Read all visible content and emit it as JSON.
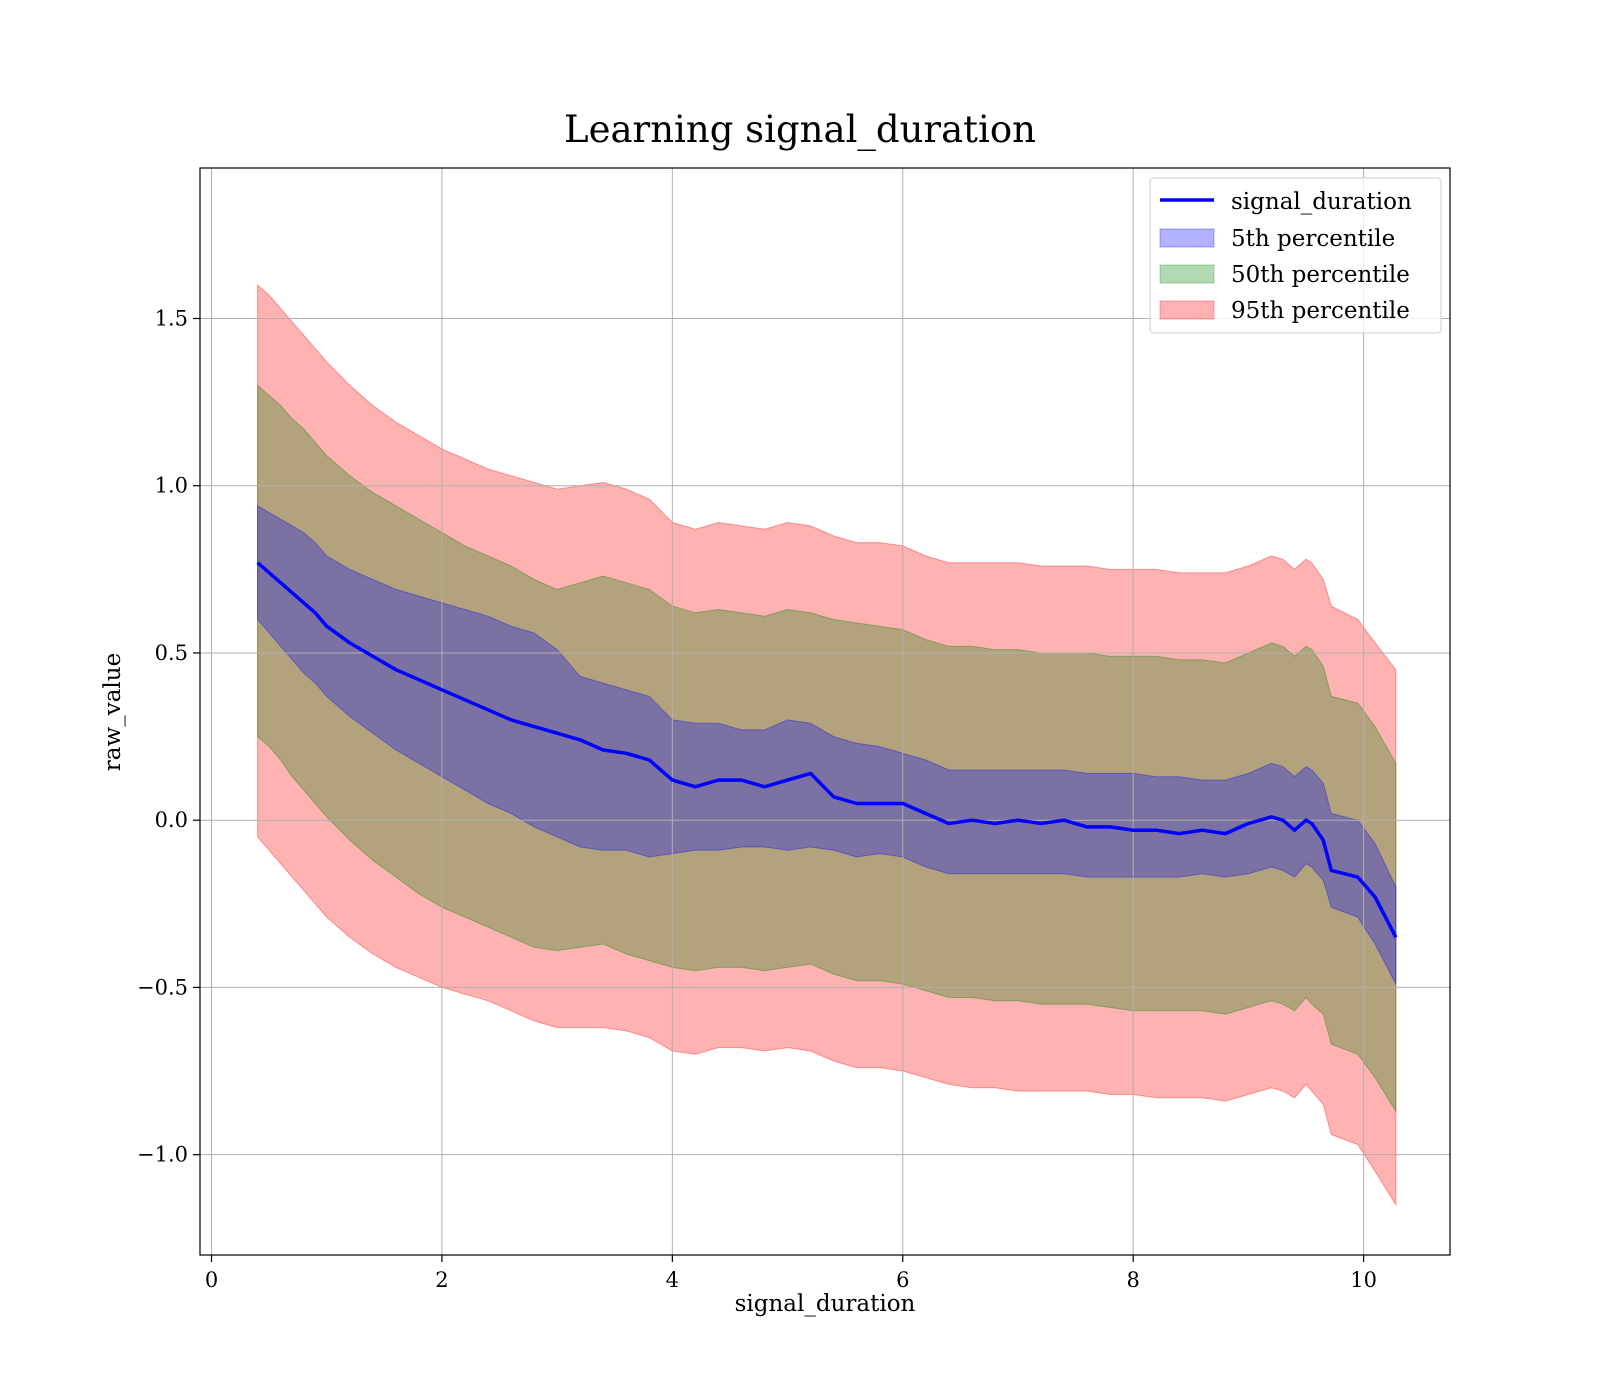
{
  "chart_data": {
    "type": "line",
    "title": "Learning signal_duration",
    "xlabel": "signal_duration",
    "ylabel": "raw_value",
    "xlim": [
      -0.1,
      10.75
    ],
    "ylim": [
      -1.3,
      1.95
    ],
    "xticks": [
      0,
      2,
      4,
      6,
      8,
      10
    ],
    "xtick_labels": [
      "0",
      "2",
      "4",
      "6",
      "8",
      "10"
    ],
    "yticks": [
      -1.0,
      -0.5,
      0.0,
      0.5,
      1.0,
      1.5
    ],
    "ytick_labels": [
      "−1.0",
      "−0.5",
      "0.0",
      "0.5",
      "1.0",
      "1.5"
    ],
    "grid": true,
    "legend_position": "top-right",
    "legend": [
      {
        "label": "signal_duration",
        "kind": "line",
        "color": "#0000ff"
      },
      {
        "label": "5th percentile",
        "kind": "patch",
        "color": "#0000ff"
      },
      {
        "label": "50th percentile",
        "kind": "patch",
        "color": "#008000"
      },
      {
        "label": "95th percentile",
        "kind": "patch",
        "color": "#ff0000"
      }
    ],
    "series": [
      {
        "name": "signal_duration",
        "color": "#0000ff",
        "x": [
          0.4,
          0.5,
          0.6,
          0.7,
          0.8,
          0.9,
          1.0,
          1.2,
          1.4,
          1.6,
          1.8,
          2.0,
          2.2,
          2.4,
          2.6,
          2.8,
          3.0,
          3.2,
          3.4,
          3.6,
          3.8,
          4.0,
          4.2,
          4.4,
          4.6,
          4.8,
          5.0,
          5.2,
          5.4,
          5.6,
          5.8,
          6.0,
          6.2,
          6.4,
          6.6,
          6.8,
          7.0,
          7.2,
          7.4,
          7.6,
          7.8,
          8.0,
          8.2,
          8.4,
          8.6,
          8.8,
          9.0,
          9.2,
          9.3,
          9.4,
          9.5,
          9.55,
          9.65,
          9.72,
          9.95,
          10.1,
          10.28
        ],
        "y": [
          0.77,
          0.74,
          0.71,
          0.68,
          0.65,
          0.62,
          0.58,
          0.53,
          0.49,
          0.45,
          0.42,
          0.39,
          0.36,
          0.33,
          0.3,
          0.28,
          0.26,
          0.24,
          0.21,
          0.2,
          0.18,
          0.12,
          0.1,
          0.12,
          0.12,
          0.1,
          0.12,
          0.14,
          0.07,
          0.05,
          0.05,
          0.05,
          0.02,
          -0.01,
          0.0,
          -0.01,
          0.0,
          -0.01,
          0.0,
          -0.02,
          -0.02,
          -0.03,
          -0.03,
          -0.04,
          -0.03,
          -0.04,
          -0.01,
          0.01,
          0.0,
          -0.03,
          0.0,
          -0.01,
          -0.06,
          -0.15,
          -0.17,
          -0.23,
          -0.35
        ]
      },
      {
        "name": "5th percentile",
        "color": "#0000ff",
        "lower": [
          0.6,
          0.56,
          0.52,
          0.48,
          0.44,
          0.41,
          0.37,
          0.31,
          0.26,
          0.21,
          0.17,
          0.13,
          0.09,
          0.05,
          0.02,
          -0.02,
          -0.05,
          -0.08,
          -0.09,
          -0.09,
          -0.11,
          -0.1,
          -0.09,
          -0.09,
          -0.08,
          -0.08,
          -0.09,
          -0.08,
          -0.09,
          -0.11,
          -0.1,
          -0.11,
          -0.14,
          -0.16,
          -0.16,
          -0.16,
          -0.16,
          -0.16,
          -0.16,
          -0.17,
          -0.17,
          -0.17,
          -0.17,
          -0.17,
          -0.16,
          -0.17,
          -0.16,
          -0.14,
          -0.15,
          -0.17,
          -0.13,
          -0.14,
          -0.18,
          -0.26,
          -0.29,
          -0.37,
          -0.49
        ],
        "upper": [
          0.94,
          0.92,
          0.9,
          0.88,
          0.86,
          0.83,
          0.79,
          0.75,
          0.72,
          0.69,
          0.67,
          0.65,
          0.63,
          0.61,
          0.58,
          0.56,
          0.51,
          0.43,
          0.41,
          0.39,
          0.37,
          0.3,
          0.29,
          0.29,
          0.27,
          0.27,
          0.3,
          0.29,
          0.25,
          0.23,
          0.22,
          0.2,
          0.18,
          0.15,
          0.15,
          0.15,
          0.15,
          0.15,
          0.15,
          0.14,
          0.14,
          0.14,
          0.13,
          0.13,
          0.12,
          0.12,
          0.14,
          0.17,
          0.16,
          0.13,
          0.16,
          0.15,
          0.11,
          0.02,
          0.0,
          -0.07,
          -0.2
        ]
      },
      {
        "name": "50th percentile",
        "color": "#008000",
        "lower": [
          0.25,
          0.22,
          0.18,
          0.13,
          0.09,
          0.05,
          0.01,
          -0.06,
          -0.12,
          -0.17,
          -0.22,
          -0.26,
          -0.29,
          -0.32,
          -0.35,
          -0.38,
          -0.39,
          -0.38,
          -0.37,
          -0.4,
          -0.42,
          -0.44,
          -0.45,
          -0.44,
          -0.44,
          -0.45,
          -0.44,
          -0.43,
          -0.46,
          -0.48,
          -0.48,
          -0.49,
          -0.51,
          -0.53,
          -0.53,
          -0.54,
          -0.54,
          -0.55,
          -0.55,
          -0.55,
          -0.56,
          -0.57,
          -0.57,
          -0.57,
          -0.57,
          -0.58,
          -0.56,
          -0.54,
          -0.55,
          -0.57,
          -0.53,
          -0.55,
          -0.58,
          -0.67,
          -0.7,
          -0.77,
          -0.87
        ],
        "upper": [
          1.3,
          1.27,
          1.24,
          1.2,
          1.17,
          1.13,
          1.09,
          1.03,
          0.98,
          0.94,
          0.9,
          0.86,
          0.82,
          0.79,
          0.76,
          0.72,
          0.69,
          0.71,
          0.73,
          0.71,
          0.69,
          0.64,
          0.62,
          0.63,
          0.62,
          0.61,
          0.63,
          0.62,
          0.6,
          0.59,
          0.58,
          0.57,
          0.54,
          0.52,
          0.52,
          0.51,
          0.51,
          0.5,
          0.5,
          0.5,
          0.49,
          0.49,
          0.49,
          0.48,
          0.48,
          0.47,
          0.5,
          0.53,
          0.52,
          0.49,
          0.52,
          0.51,
          0.46,
          0.37,
          0.35,
          0.28,
          0.17
        ]
      },
      {
        "name": "95th percentile",
        "color": "#ff0000",
        "lower": [
          -0.05,
          -0.09,
          -0.13,
          -0.17,
          -0.21,
          -0.25,
          -0.29,
          -0.35,
          -0.4,
          -0.44,
          -0.47,
          -0.5,
          -0.52,
          -0.54,
          -0.57,
          -0.6,
          -0.62,
          -0.62,
          -0.62,
          -0.63,
          -0.65,
          -0.69,
          -0.7,
          -0.68,
          -0.68,
          -0.69,
          -0.68,
          -0.69,
          -0.72,
          -0.74,
          -0.74,
          -0.75,
          -0.77,
          -0.79,
          -0.8,
          -0.8,
          -0.81,
          -0.81,
          -0.81,
          -0.81,
          -0.82,
          -0.82,
          -0.83,
          -0.83,
          -0.83,
          -0.84,
          -0.82,
          -0.8,
          -0.81,
          -0.83,
          -0.79,
          -0.81,
          -0.85,
          -0.94,
          -0.97,
          -1.05,
          -1.15
        ],
        "upper": [
          1.6,
          1.57,
          1.53,
          1.49,
          1.45,
          1.41,
          1.37,
          1.3,
          1.24,
          1.19,
          1.15,
          1.11,
          1.08,
          1.05,
          1.03,
          1.01,
          0.99,
          1.0,
          1.01,
          0.99,
          0.96,
          0.89,
          0.87,
          0.89,
          0.88,
          0.87,
          0.89,
          0.88,
          0.85,
          0.83,
          0.83,
          0.82,
          0.79,
          0.77,
          0.77,
          0.77,
          0.77,
          0.76,
          0.76,
          0.76,
          0.75,
          0.75,
          0.75,
          0.74,
          0.74,
          0.74,
          0.76,
          0.79,
          0.78,
          0.75,
          0.78,
          0.77,
          0.72,
          0.64,
          0.6,
          0.53,
          0.45
        ]
      }
    ]
  }
}
